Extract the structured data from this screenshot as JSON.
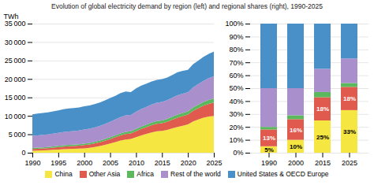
{
  "chart_data": [
    {
      "type": "area",
      "stacked": true,
      "title": "Evolution of global electricity demand by region (left) and regional shares (right), 1990-2025",
      "y_label": "TWh",
      "x": [
        1990,
        1991,
        1992,
        1993,
        1994,
        1995,
        1996,
        1997,
        1998,
        1999,
        2000,
        2001,
        2002,
        2003,
        2004,
        2005,
        2006,
        2007,
        2008,
        2009,
        2010,
        2011,
        2012,
        2013,
        2014,
        2015,
        2016,
        2017,
        2018,
        2019,
        2020,
        2021,
        2022,
        2023,
        2024,
        2025
      ],
      "xlim": [
        1990,
        2025
      ],
      "xticks": [
        1990,
        1995,
        2000,
        2005,
        2010,
        2015,
        2020,
        2025
      ],
      "ylim": [
        0,
        35000
      ],
      "yticks": [
        0,
        {
          "value": 5000,
          "label": "5 000"
        },
        {
          "value": 10000,
          "label": "10 000"
        },
        {
          "value": 15000,
          "label": "15 000"
        },
        {
          "value": 20000,
          "label": "20 000"
        },
        {
          "value": 25000,
          "label": "25 000"
        },
        {
          "value": 30000,
          "label": "30 000"
        },
        {
          "value": 35000,
          "label": "35 000"
        }
      ],
      "grid": true,
      "legend": "bottom",
      "series": [
        {
          "name": "China",
          "color": "#F5E642",
          "values": [
            550,
            600,
            640,
            700,
            780,
            880,
            980,
            1030,
            1050,
            1100,
            1200,
            1350,
            1550,
            1800,
            2150,
            2500,
            2900,
            3300,
            3600,
            3750,
            4200,
            4700,
            5100,
            5500,
            5800,
            5900,
            6200,
            6600,
            7000,
            7300,
            7700,
            8500,
            9000,
            9500,
            9800,
            10000
          ]
        },
        {
          "name": "Other Asia",
          "color": "#E05A4E",
          "values": [
            450,
            480,
            510,
            550,
            590,
            640,
            690,
            730,
            760,
            800,
            860,
            900,
            960,
            1030,
            1110,
            1200,
            1290,
            1390,
            1470,
            1490,
            1630,
            1750,
            1850,
            1970,
            2050,
            2100,
            2200,
            2350,
            2500,
            2600,
            2650,
            2850,
            3050,
            3250,
            3450,
            3600
          ]
        },
        {
          "name": "Africa",
          "color": "#5CB85C",
          "values": [
            280,
            290,
            300,
            310,
            320,
            340,
            355,
            365,
            375,
            395,
            410,
            420,
            440,
            455,
            475,
            495,
            515,
            535,
            565,
            575,
            605,
            635,
            655,
            685,
            715,
            740,
            765,
            795,
            835,
            865,
            875,
            915,
            960,
            1000,
            1050,
            1100
          ]
        },
        {
          "name": "Rest of the world",
          "color": "#A98FCC",
          "values": [
            3300,
            3350,
            3380,
            3420,
            3470,
            3520,
            3580,
            3640,
            3680,
            3720,
            3800,
            3830,
            3900,
            3980,
            4080,
            4200,
            4310,
            4450,
            4520,
            4420,
            4650,
            4750,
            4830,
            4900,
            4970,
            5020,
            5070,
            5170,
            5270,
            5250,
            5150,
            5450,
            5600,
            5750,
            5900,
            6000
          ]
        },
        {
          "name": "United States & OECD Europe",
          "color": "#4A90C8",
          "values": [
            5800,
            5880,
            5930,
            5960,
            6020,
            6070,
            6160,
            6220,
            6230,
            6260,
            6330,
            6280,
            6320,
            6330,
            6380,
            6420,
            6430,
            6470,
            6430,
            6180,
            6380,
            6340,
            6280,
            6250,
            6230,
            6170,
            6130,
            6180,
            6230,
            6180,
            6080,
            6270,
            6380,
            6480,
            6580,
            6700
          ]
        }
      ]
    },
    {
      "type": "bar",
      "stacked": true,
      "categories": [
        "1990",
        "2000",
        "2015",
        "2025"
      ],
      "ylim": [
        0,
        100
      ],
      "yticks": [
        {
          "value": 0,
          "label": "0%"
        },
        {
          "value": 10,
          "label": "10%"
        },
        {
          "value": 20,
          "label": "20%"
        },
        {
          "value": 30,
          "label": "30%"
        },
        {
          "value": 40,
          "label": "40%"
        },
        {
          "value": 50,
          "label": "50%"
        },
        {
          "value": 60,
          "label": "60%"
        },
        {
          "value": 70,
          "label": "70%"
        },
        {
          "value": 80,
          "label": "80%"
        },
        {
          "value": 90,
          "label": "90%"
        },
        {
          "value": 100,
          "label": "100%"
        }
      ],
      "grid": true,
      "series": [
        {
          "name": "China",
          "color": "#F5E642",
          "values": [
            5,
            10,
            25,
            33
          ],
          "data_labels": true,
          "value_labels": [
            "5%",
            "10%",
            "25%",
            "33%"
          ]
        },
        {
          "name": "Other Asia",
          "color": "#E05A4E",
          "values": [
            13,
            16,
            18,
            18
          ],
          "data_labels": true,
          "value_labels": [
            "13%",
            "16%",
            "18%",
            "18%"
          ]
        },
        {
          "name": "Africa",
          "color": "#5CB85C",
          "values": [
            2,
            3,
            4,
            3
          ]
        },
        {
          "name": "Rest of the world",
          "color": "#A98FCC",
          "values": [
            30,
            21,
            18,
            19
          ]
        },
        {
          "name": "United States & OECD Europe",
          "color": "#4A90C8",
          "values": [
            50,
            50,
            35,
            27
          ]
        }
      ]
    }
  ]
}
